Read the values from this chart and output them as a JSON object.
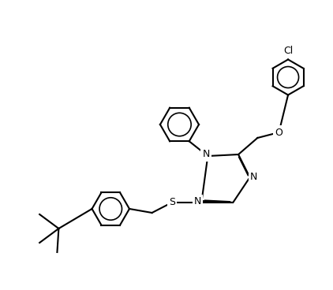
{
  "bg_color": "#ffffff",
  "line_color": "#000000",
  "figsize": [
    4.22,
    3.68
  ],
  "dpi": 100,
  "lw": 1.5,
  "font_size": 9,
  "atoms": {
    "N_label": "N",
    "S_label": "S",
    "O_label": "O",
    "Cl_label": "Cl"
  }
}
